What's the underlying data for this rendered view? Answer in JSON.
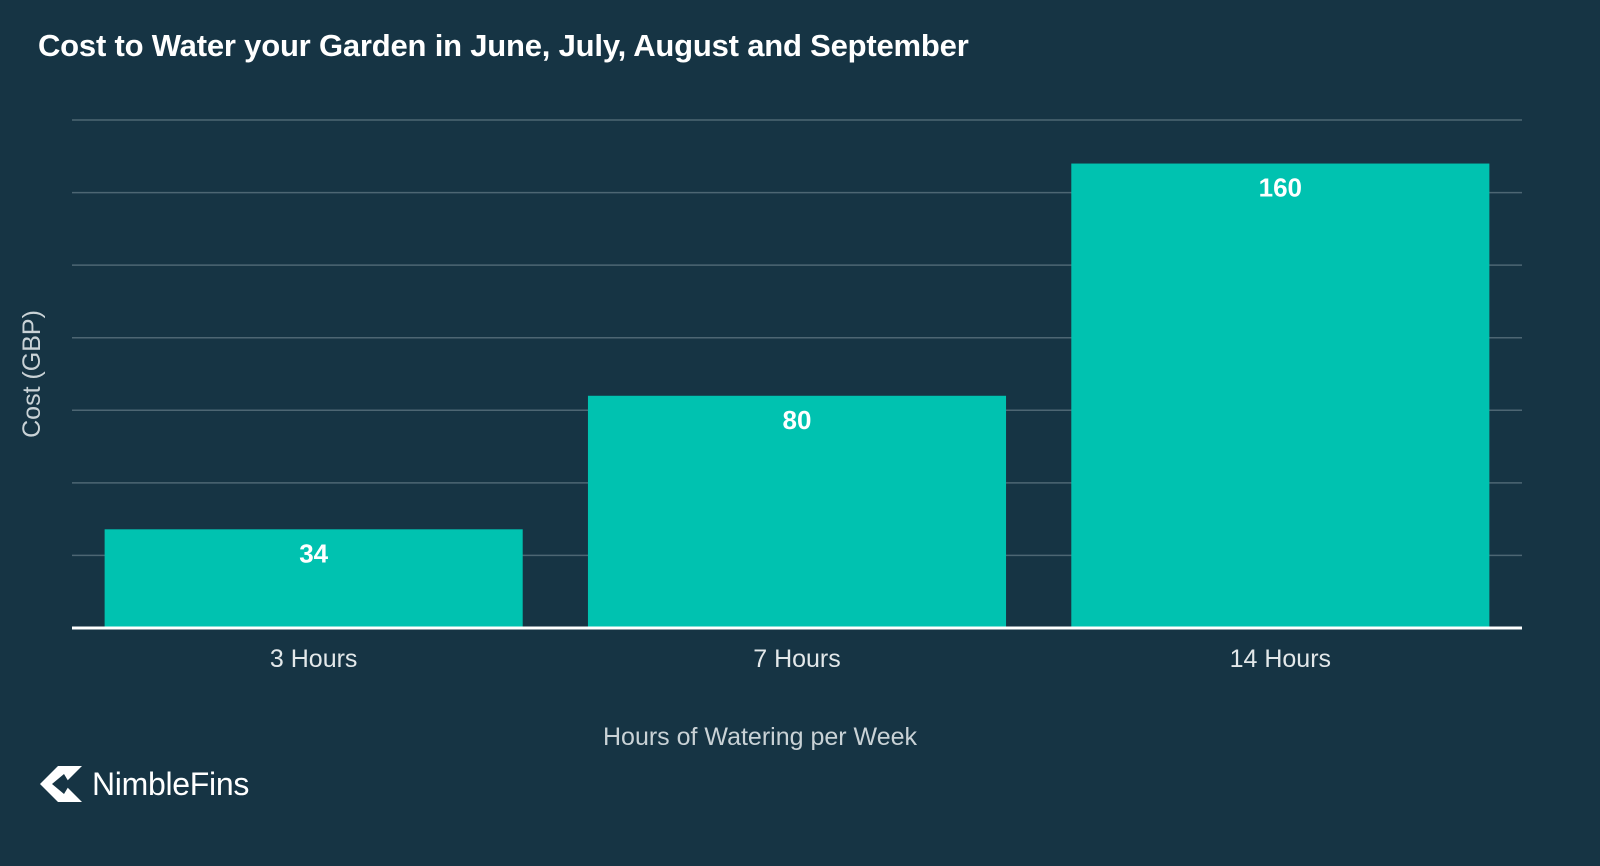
{
  "chart_data": {
    "type": "bar",
    "title": "Cost to Water your Garden in June, July, August and September",
    "xlabel": "Hours of Watering per Week",
    "ylabel": "Cost (GBP)",
    "categories": [
      "3 Hours",
      "7 Hours",
      "14 Hours"
    ],
    "values": [
      34,
      80,
      160
    ],
    "data_labels": [
      "34",
      "80",
      "160"
    ],
    "ylim": [
      0,
      175
    ],
    "grid": true,
    "y_tick_labels_shown": false,
    "colors": {
      "background": "#163444",
      "bar": "#00c2b0",
      "grid": "#4d6673",
      "baseline": "#ffffff"
    }
  },
  "brand": {
    "name": "NimbleFins",
    "icon": "nimblefins-logo-icon"
  }
}
